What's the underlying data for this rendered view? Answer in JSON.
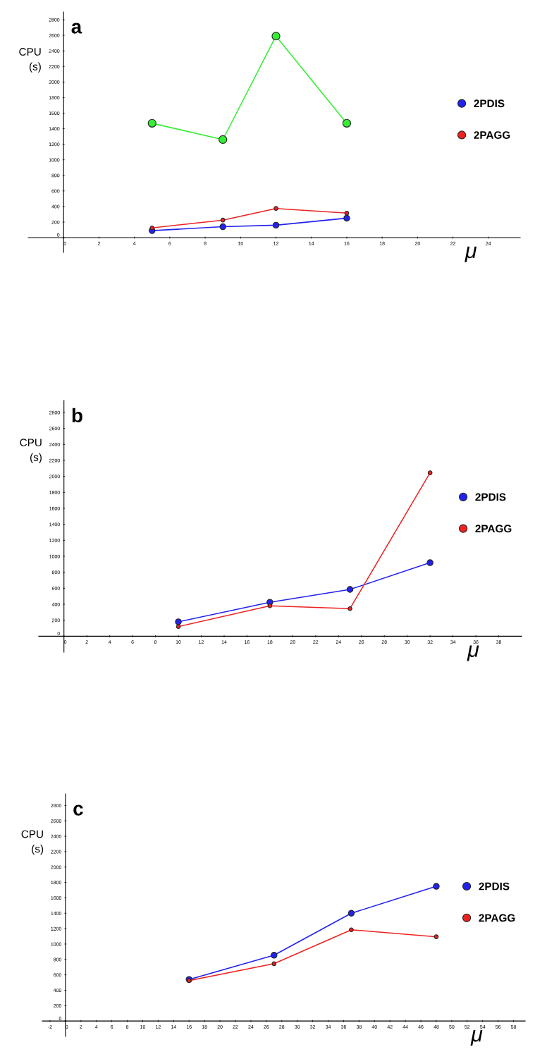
{
  "chart_data": [
    {
      "type": "line",
      "title": "a",
      "xlabel": "μ",
      "ylabel": "CPU\n(s)",
      "marker": "circle",
      "legend": "right",
      "grid": false,
      "xlim": [
        -2,
        25.8
      ],
      "ylim": [
        -190,
        2900
      ],
      "xticks": [
        0,
        2,
        4,
        6,
        8,
        10,
        12,
        14,
        16,
        18,
        20,
        22,
        24
      ],
      "yticks": [
        0,
        200,
        400,
        600,
        800,
        1000,
        1200,
        1400,
        1600,
        1800,
        2000,
        2200,
        2400,
        2600,
        2800
      ],
      "x": [
        5,
        9,
        12,
        16
      ],
      "series": [
        {
          "color": "#33ee33",
          "values": [
            1470,
            1260,
            2590,
            1470
          ]
        },
        {
          "name": "2PDIS",
          "color": "#2222ee",
          "values": [
            90,
            140,
            160,
            250
          ]
        },
        {
          "name": "2PAGG",
          "color": "#ee2222",
          "values": [
            125,
            225,
            375,
            315
          ]
        }
      ]
    },
    {
      "type": "line",
      "title": "b",
      "xlabel": "μ",
      "ylabel": "CPU\n(s)",
      "marker": "circle",
      "legend": "right",
      "grid": false,
      "xlim": [
        -2.2,
        40
      ],
      "ylim": [
        -200,
        2950
      ],
      "xticks": [
        0,
        2,
        4,
        6,
        8,
        10,
        12,
        14,
        16,
        18,
        20,
        22,
        24,
        26,
        28,
        30,
        32,
        34,
        36,
        38
      ],
      "yticks": [
        0,
        200,
        400,
        600,
        800,
        1000,
        1200,
        1400,
        1600,
        1800,
        2000,
        2200,
        2400,
        2600,
        2800
      ],
      "x": [
        10,
        18,
        25,
        32
      ],
      "series": [
        {
          "name": "2PDIS",
          "color": "#2222ee",
          "values": [
            180,
            425,
            585,
            920
          ]
        },
        {
          "name": "2PAGG",
          "color": "#ee2222",
          "values": [
            120,
            380,
            345,
            2045
          ]
        }
      ]
    },
    {
      "type": "line",
      "title": "c",
      "xlabel": "μ",
      "ylabel": "CPU\n(s)",
      "marker": "circle",
      "legend": "right",
      "grid": false,
      "xlim": [
        -3,
        59.5
      ],
      "ylim": [
        -200,
        2950
      ],
      "xticks": [
        -2,
        0,
        2,
        4,
        6,
        8,
        10,
        12,
        14,
        16,
        18,
        20,
        22,
        24,
        26,
        28,
        30,
        32,
        34,
        36,
        38,
        40,
        42,
        44,
        46,
        48,
        50,
        52,
        54,
        56,
        58
      ],
      "yticks": [
        0,
        200,
        400,
        600,
        800,
        1000,
        1200,
        1400,
        1600,
        1800,
        2000,
        2200,
        2400,
        2600,
        2800
      ],
      "x": [
        16,
        27,
        37,
        48
      ],
      "series": [
        {
          "name": "2PDIS",
          "color": "#2222ee",
          "values": [
            540,
            855,
            1400,
            1750
          ]
        },
        {
          "name": "2PAGG",
          "color": "#ee2222",
          "values": [
            525,
            745,
            1185,
            1095
          ]
        }
      ]
    }
  ]
}
